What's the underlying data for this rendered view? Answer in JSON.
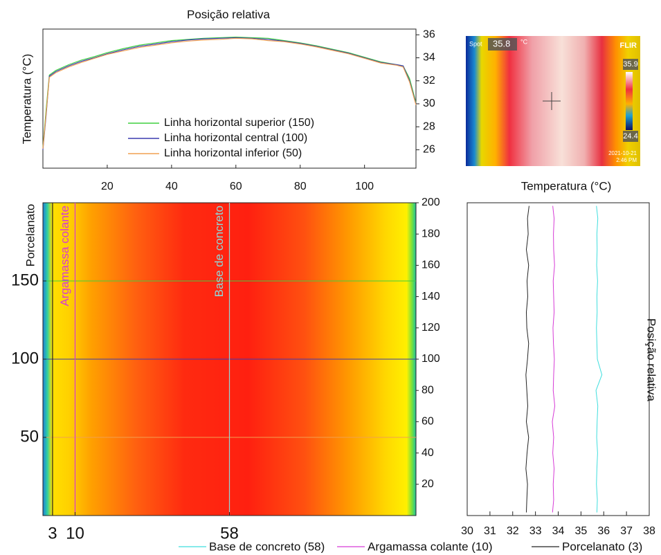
{
  "chart_data": [
    {
      "type": "line",
      "x_label": "Posição relativa",
      "y_label": "Temperatura (°C)",
      "x": [
        0,
        1,
        2,
        4,
        8,
        12,
        16,
        20,
        25,
        30,
        35,
        40,
        45,
        50,
        55,
        60,
        65,
        70,
        75,
        80,
        85,
        90,
        95,
        100,
        105,
        110,
        112,
        114,
        116
      ],
      "series": [
        {
          "name": "Linha horizontal superior (150)",
          "color": "#3ecf3e",
          "values": [
            26.2,
            29.5,
            32.5,
            32.9,
            33.4,
            33.8,
            34.1,
            34.45,
            34.8,
            35.1,
            35.3,
            35.5,
            35.6,
            35.7,
            35.75,
            35.8,
            35.75,
            35.7,
            35.5,
            35.3,
            35.05,
            34.75,
            34.45,
            34.05,
            33.65,
            33.4,
            33.3,
            32.2,
            30.1
          ]
        },
        {
          "name": "Linha horizontal central (100)",
          "color": "#3a3aaf",
          "values": [
            26,
            29,
            32.4,
            32.8,
            33.3,
            33.7,
            34.0,
            34.35,
            34.7,
            35.0,
            35.2,
            35.4,
            35.55,
            35.65,
            35.7,
            35.75,
            35.7,
            35.6,
            35.45,
            35.25,
            35.0,
            34.7,
            34.4,
            34.0,
            33.6,
            33.4,
            33.3,
            32.0,
            30.0
          ]
        },
        {
          "name": "Linha horizontal inferior (50)",
          "color": "#f0a050",
          "values": [
            26.1,
            29.2,
            32.3,
            32.7,
            33.2,
            33.6,
            33.95,
            34.3,
            34.6,
            34.9,
            35.1,
            35.3,
            35.45,
            35.55,
            35.6,
            35.7,
            35.65,
            35.5,
            35.4,
            35.2,
            34.95,
            34.65,
            34.35,
            33.95,
            33.55,
            33.35,
            33.2,
            31.9,
            29.9
          ]
        }
      ],
      "xlim": [
        0,
        116
      ],
      "xticks": [
        20,
        40,
        60,
        80,
        100
      ],
      "ylim": [
        24.4,
        36.5
      ],
      "yticks": [
        26,
        28,
        30,
        32,
        34,
        36
      ]
    },
    {
      "type": "heatmap",
      "y_label": "Porcelanato",
      "xlim": [
        0,
        116
      ],
      "xticks": [
        3,
        10,
        58
      ],
      "ylim": [
        0,
        200
      ],
      "yticks": [
        50,
        100,
        150
      ],
      "vlines": [
        {
          "x": 3,
          "color": "#222222"
        },
        {
          "x": 10,
          "color": "#d63ad6",
          "label": "Argamassa colante"
        },
        {
          "x": 58,
          "color": "#8fd8d8",
          "label": "Base de concreto"
        }
      ],
      "hlines": [
        {
          "y": 150,
          "color": "#3ecf3e"
        },
        {
          "y": 100,
          "color": "#3a3aaf"
        },
        {
          "y": 50,
          "color": "#f0a050"
        }
      ]
    },
    {
      "type": "profile",
      "x_label": "Temperatura (°C)",
      "y_label": "Posição relativa",
      "y": [
        2,
        10,
        20,
        30,
        40,
        50,
        60,
        70,
        80,
        90,
        100,
        110,
        120,
        130,
        140,
        150,
        160,
        170,
        180,
        190,
        198
      ],
      "series": [
        {
          "name": "Base de concreto (58)",
          "color": "#3fdede",
          "values": [
            35.7,
            35.72,
            35.68,
            35.7,
            35.73,
            35.69,
            35.71,
            35.74,
            35.66,
            35.92,
            35.72,
            35.7,
            35.68,
            35.71,
            35.7,
            35.73,
            35.69,
            35.71,
            35.7,
            35.74,
            35.68
          ]
        },
        {
          "name": "Argamassa colante (10)",
          "color": "#d63ad6",
          "values": [
            33.75,
            33.8,
            33.78,
            33.82,
            33.76,
            33.8,
            33.74,
            33.85,
            33.78,
            33.8,
            33.83,
            33.79,
            33.77,
            33.82,
            33.8,
            33.78,
            33.84,
            33.8,
            33.79,
            33.82,
            33.76
          ]
        },
        {
          "name": "Porcelanato (3)",
          "color": "#222222",
          "values": [
            32.6,
            32.62,
            32.65,
            32.58,
            32.63,
            32.7,
            32.6,
            32.66,
            32.62,
            32.58,
            32.65,
            32.7,
            32.62,
            32.6,
            32.66,
            32.63,
            32.7,
            32.6,
            32.68,
            32.65,
            32.72
          ]
        }
      ],
      "xlim": [
        30,
        38
      ],
      "xticks": [
        30,
        31,
        32,
        33,
        34,
        35,
        36,
        37,
        38
      ],
      "ylim": [
        0,
        200
      ],
      "yticks": [
        20,
        40,
        60,
        80,
        100,
        120,
        140,
        160,
        180,
        200
      ]
    }
  ],
  "thermal_image": {
    "spot_label": "Spot",
    "spot_value": 35.8,
    "unit": "°C",
    "brand": "FLIR",
    "scale_max": 35.9,
    "scale_min": 24.4,
    "date": "2021-10-21",
    "time": "2:46 PM"
  }
}
